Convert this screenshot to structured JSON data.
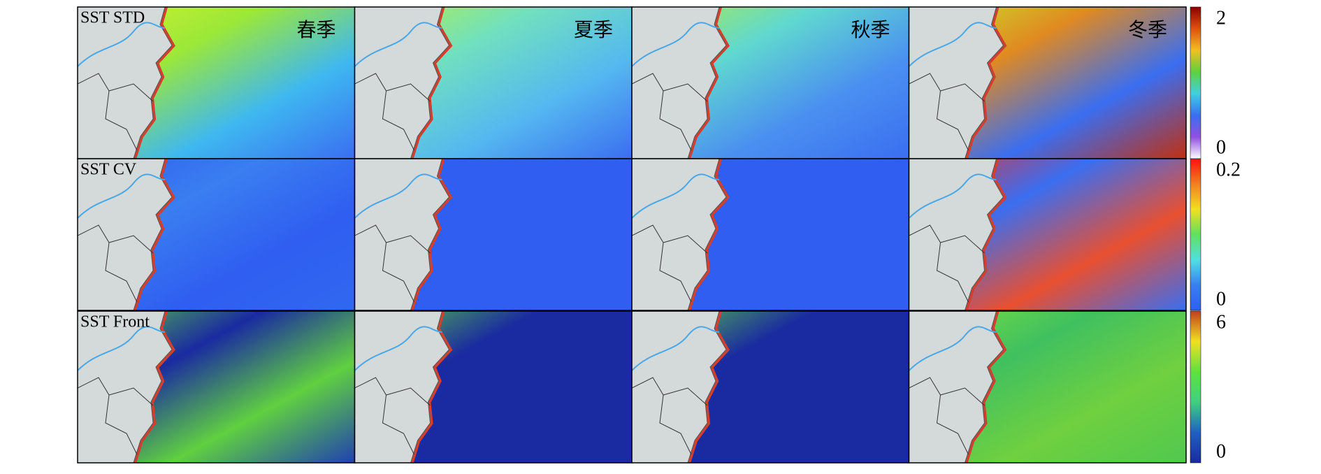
{
  "row_labels": [
    "SST STD",
    "SST CV",
    "SST Front"
  ],
  "season_labels": [
    "春季",
    "夏季",
    "秋季",
    "冬季"
  ],
  "colorbars": [
    {
      "max": 2,
      "min": 0
    },
    {
      "max": 0.2,
      "min": 0
    },
    {
      "max": 6,
      "min": 0
    }
  ]
}
